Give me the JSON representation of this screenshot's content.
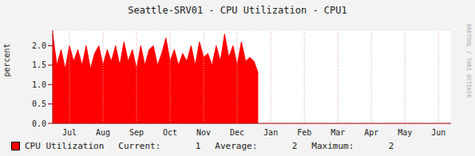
{
  "chart_data": {
    "type": "area",
    "title": "Seattle-SRV01 - CPU Utilization - CPU1",
    "y_label": "percent",
    "annotations": [
      "RRDTOOL / TOBI OETIKER"
    ],
    "categories": [
      null,
      null,
      null,
      null,
      "Jul",
      null,
      null,
      null,
      null,
      null,
      null,
      null,
      "Aug",
      null,
      null,
      null,
      null,
      null,
      null,
      null,
      "Sep",
      null,
      null,
      null,
      null,
      null,
      null,
      null,
      "Oct",
      null,
      null,
      null,
      null,
      null,
      null,
      null,
      "Nov",
      null,
      null,
      null,
      null,
      null,
      null,
      null,
      "Dec",
      null,
      null,
      null,
      null,
      null,
      null,
      null,
      "Jan",
      null,
      null,
      null,
      null,
      null,
      null,
      null,
      "Feb",
      null,
      null,
      null,
      null,
      null,
      null,
      null,
      "Mar",
      null,
      null,
      null,
      null,
      null,
      null,
      null,
      "Apr",
      null,
      null,
      null,
      null,
      null,
      null,
      null,
      "May",
      null,
      null,
      null,
      null,
      null,
      null,
      null,
      "Jun",
      null,
      null,
      null
    ],
    "series": [
      {
        "name": "CPU Utilization",
        "color": "#ff0000",
        "values": [
          2.3,
          1.5,
          1.9,
          1.4,
          2.0,
          1.6,
          1.9,
          1.5,
          2.0,
          1.4,
          1.8,
          2.0,
          1.5,
          1.9,
          1.6,
          2.0,
          1.5,
          2.1,
          1.6,
          1.9,
          1.4,
          2.0,
          1.5,
          1.9,
          2.0,
          1.5,
          1.8,
          2.2,
          1.6,
          1.9,
          1.5,
          1.8,
          1.6,
          2.0,
          1.5,
          2.1,
          1.7,
          1.8,
          1.5,
          2.0,
          1.6,
          2.3,
          1.7,
          2.0,
          1.5,
          2.1,
          1.6,
          1.7,
          1.6,
          1.3,
          null,
          null,
          null,
          null,
          null,
          null,
          null,
          null,
          null,
          null,
          null,
          null,
          null,
          null,
          null,
          null,
          null,
          null,
          null,
          null,
          null,
          null,
          null,
          null,
          null,
          null,
          null,
          null,
          null,
          null,
          null,
          null,
          null,
          null,
          null,
          null,
          null,
          null,
          null,
          null,
          null,
          null,
          null,
          null,
          null,
          null
        ]
      }
    ],
    "legend_stats": [
      {
        "label": "Current:",
        "value": 1
      },
      {
        "label": "Average:",
        "value": 2
      },
      {
        "label": "Maximum:",
        "value": 2
      }
    ],
    "ylim": [
      0,
      2.4
    ],
    "yticks": [
      {
        "value": 0,
        "label": "0.0"
      },
      {
        "value": 0.5,
        "label": "0.5"
      },
      {
        "value": 1,
        "label": "1.0"
      },
      {
        "value": 1.5,
        "label": "1.5"
      },
      {
        "value": 2,
        "label": "2.0"
      }
    ],
    "grid": true,
    "legend": "bottom"
  }
}
